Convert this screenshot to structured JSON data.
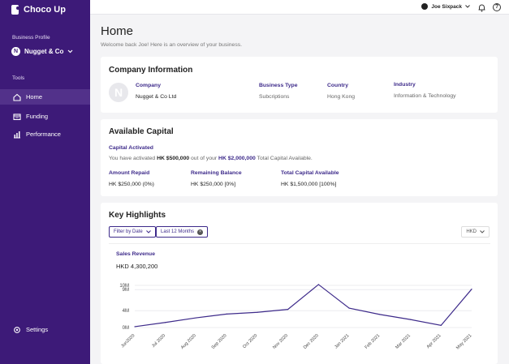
{
  "app": {
    "name": "Choco Up"
  },
  "sidebar": {
    "business_profile_label": "Business Profile",
    "business": {
      "initial": "N",
      "name": "Nugget & Co"
    },
    "tools_label": "Tools",
    "items": [
      {
        "label": "Home",
        "icon": "home-icon",
        "active": true
      },
      {
        "label": "Funding",
        "icon": "funding-icon",
        "active": false
      },
      {
        "label": "Performance",
        "icon": "performance-icon",
        "active": false
      }
    ],
    "settings_label": "Settings"
  },
  "topbar": {
    "user_name": "Joe Sixpack",
    "help_glyph": "?"
  },
  "page": {
    "title": "Home",
    "subtitle": "Welcome back Joe! Here is an overview of your business."
  },
  "company": {
    "title": "Company Information",
    "logo_initial": "N",
    "fields": [
      {
        "label": "Company",
        "value": "Nugget & Co Ltd"
      },
      {
        "label": "Business Type",
        "value": "Subcriptions"
      },
      {
        "label": "Country",
        "value": "Hong Kong"
      },
      {
        "label": "Industry",
        "value": "Information & Technology"
      }
    ]
  },
  "capital": {
    "title": "Available Capital",
    "activated_label": "Capital Activated",
    "activated_text": {
      "pre": "You have activated ",
      "amount": "HK $500,000",
      "mid": " out of your ",
      "total": "HK $2,000,000",
      "post": " Total Capital Available."
    },
    "stats": [
      {
        "label": "Amount Repaid",
        "value": "HK $250,000 (0%)"
      },
      {
        "label": "Remaining Balance",
        "value": "HK $250,000 [0%]"
      },
      {
        "label": "Total Capital Available",
        "value": "HK $1,500,000 [100%]"
      }
    ]
  },
  "highlights": {
    "title": "Key Highlights",
    "filter_label": "Filter by Date",
    "period_label": "Last 12 Months",
    "currency": "HKD",
    "chart_title": "Sales Revenue",
    "chart_total": "HKD 4,300,200"
  },
  "chart_data": {
    "type": "line",
    "title": "Sales Revenue",
    "categories": [
      "Jun2020",
      "Jul 2020",
      "Aug 2020",
      "Sep 2020",
      "Oct 2020",
      "Nov 2020",
      "Dec 2020",
      "Jan 2021",
      "Feb 2021",
      "Mar 2021",
      "Apr 2021",
      "May 2021"
    ],
    "y_ticks": [
      "0M",
      "4M",
      "9M",
      "10M"
    ],
    "series": [
      {
        "values": [
          0.2,
          1.2,
          2.3,
          3.2,
          3.6,
          4.3,
          10.2,
          4.6,
          3.1,
          1.9,
          0.5,
          9.1
        ]
      }
    ],
    "accent": "#3d2a8a"
  }
}
